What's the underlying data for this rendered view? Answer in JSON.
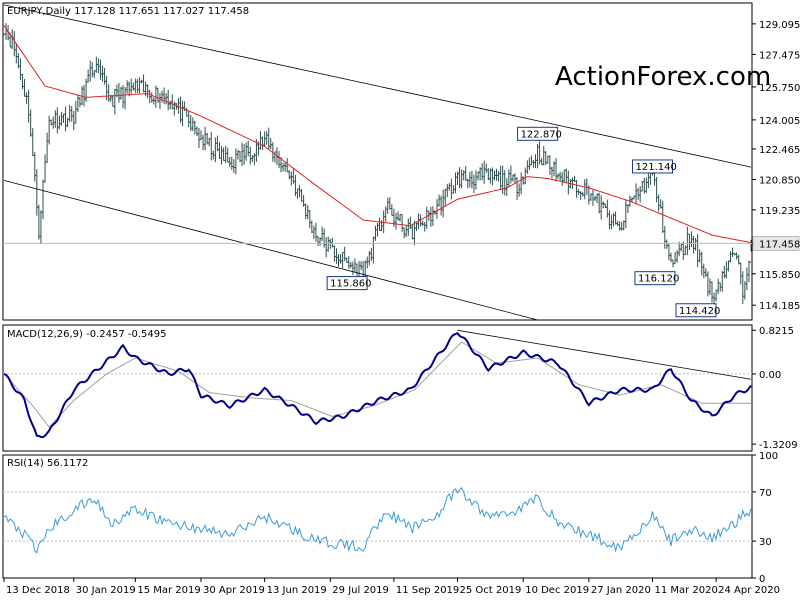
{
  "header": {
    "main": "EURJPY,Daily  117.128 117.651 117.027 117.458",
    "macd": "MACD(12,26,9) -0.2457 -0.5495",
    "rsi": "RSI(14) 56.1172"
  },
  "watermark": "ActionForex.com",
  "colors": {
    "price": "#2f4f4f",
    "ma": "#dd2222",
    "macd_line": "#00008b",
    "macd_signal": "#a0a0a0",
    "rsi_line": "#3a9bdc",
    "channel": "#000000",
    "grid": "#bbbbbb",
    "watermark": "#cfcfcf"
  },
  "chart_data": [
    {
      "type": "line",
      "title": "EURJPY,Daily",
      "ohlc_last": {
        "open": 117.128,
        "high": 117.651,
        "low": 117.027,
        "close": 117.458
      },
      "ylim": [
        113.4,
        130.2
      ],
      "y_ticks": [
        "129.095",
        "127.475",
        "125.750",
        "124.005",
        "122.465",
        "120.850",
        "119.235",
        "117.458",
        "115.850",
        "114.185"
      ],
      "y_tick_values": [
        129.095,
        127.475,
        125.75,
        124.005,
        122.465,
        120.85,
        119.235,
        117.458,
        115.85,
        114.185
      ],
      "current_price": 117.458,
      "x_ticks": [
        "13 Dec 2018",
        "30 Jan 2019",
        "15 Mar 2019",
        "30 Apr 2019",
        "13 Jun 2019",
        "29 Jul 2019",
        "11 Sep 2019",
        "25 Oct 2019",
        "10 Dec 2019",
        "27 Jan 2020",
        "11 Mar 2020",
        "24 Apr 2020"
      ],
      "x_tick_index": [
        0,
        34,
        64,
        96,
        127,
        159,
        190,
        221,
        253,
        285,
        316,
        347
      ],
      "num_bars": 365,
      "price_keypoints": [
        [
          0,
          129.0
        ],
        [
          5,
          127.8
        ],
        [
          12,
          124.6
        ],
        [
          17,
          118.2
        ],
        [
          22,
          124.0
        ],
        [
          34,
          124.2
        ],
        [
          44,
          126.9
        ],
        [
          52,
          125.1
        ],
        [
          64,
          125.7
        ],
        [
          80,
          125.2
        ],
        [
          96,
          123.0
        ],
        [
          110,
          121.7
        ],
        [
          127,
          122.9
        ],
        [
          140,
          121.0
        ],
        [
          152,
          117.9
        ],
        [
          167,
          116.4
        ],
        [
          175,
          115.9
        ],
        [
          186,
          119.3
        ],
        [
          198,
          118.0
        ],
        [
          210,
          119.2
        ],
        [
          221,
          120.9
        ],
        [
          236,
          121.0
        ],
        [
          250,
          120.6
        ],
        [
          260,
          122.3
        ],
        [
          270,
          121.1
        ],
        [
          285,
          120.2
        ],
        [
          300,
          118.1
        ],
        [
          305,
          119.7
        ],
        [
          316,
          121.1
        ],
        [
          325,
          116.3
        ],
        [
          335,
          117.9
        ],
        [
          345,
          114.7
        ],
        [
          356,
          117.0
        ],
        [
          360,
          115.0
        ],
        [
          364,
          117.46
        ]
      ],
      "ma_keypoints": [
        [
          0,
          129.0
        ],
        [
          20,
          125.8
        ],
        [
          40,
          125.2
        ],
        [
          70,
          125.4
        ],
        [
          96,
          124.2
        ],
        [
          127,
          122.6
        ],
        [
          150,
          120.7
        ],
        [
          175,
          118.7
        ],
        [
          198,
          118.4
        ],
        [
          221,
          119.8
        ],
        [
          245,
          120.4
        ],
        [
          255,
          121.0
        ],
        [
          265,
          120.9
        ],
        [
          285,
          120.4
        ],
        [
          305,
          119.7
        ],
        [
          325,
          118.8
        ],
        [
          345,
          117.9
        ],
        [
          364,
          117.5
        ]
      ],
      "annotations": [
        {
          "text": "122.870",
          "x": 260,
          "y": 122.87
        },
        {
          "text": "121.140",
          "x": 316,
          "y": 121.14
        },
        {
          "text": "115.860",
          "x": 175,
          "y": 115.86
        },
        {
          "text": "116.120",
          "x": 325,
          "y": 116.12
        },
        {
          "text": "114.420",
          "x": 345,
          "y": 114.42
        }
      ],
      "trend_lines": [
        {
          "from": [
            0,
            130.1
          ],
          "to": [
            364,
            121.5
          ]
        },
        {
          "from": [
            0,
            120.8
          ],
          "to": [
            260,
            113.4
          ]
        }
      ],
      "hline": 117.458
    },
    {
      "type": "line",
      "title": "MACD(12,26,9)",
      "ylim": [
        -1.45,
        0.92
      ],
      "y_ticks": [
        "0.8215",
        "0.00",
        "-1.3209"
      ],
      "y_tick_values": [
        0.8215,
        0.0,
        -1.3209
      ],
      "series": [
        {
          "name": "MACD",
          "values_last": -0.2457,
          "keypoints": [
            [
              0,
              0.0
            ],
            [
              10,
              -0.5
            ],
            [
              16,
              -1.2
            ],
            [
              22,
              -1.1
            ],
            [
              34,
              -0.3
            ],
            [
              46,
              0.1
            ],
            [
              58,
              0.5
            ],
            [
              64,
              0.3
            ],
            [
              80,
              0.0
            ],
            [
              90,
              0.1
            ],
            [
              96,
              -0.4
            ],
            [
              110,
              -0.6
            ],
            [
              127,
              -0.3
            ],
            [
              140,
              -0.6
            ],
            [
              152,
              -0.9
            ],
            [
              165,
              -0.8
            ],
            [
              182,
              -0.5
            ],
            [
              190,
              -0.4
            ],
            [
              198,
              -0.3
            ],
            [
              221,
              0.8
            ],
            [
              236,
              0.1
            ],
            [
              253,
              0.4
            ],
            [
              270,
              0.2
            ],
            [
              285,
              -0.55
            ],
            [
              300,
              -0.3
            ],
            [
              316,
              -0.3
            ],
            [
              325,
              0.1
            ],
            [
              335,
              -0.5
            ],
            [
              345,
              -0.8
            ],
            [
              356,
              -0.4
            ],
            [
              364,
              -0.25
            ]
          ]
        },
        {
          "name": "Signal",
          "values_last": -0.5495,
          "keypoints": [
            [
              0,
              0.0
            ],
            [
              14,
              -0.6
            ],
            [
              22,
              -1.0
            ],
            [
              34,
              -0.5
            ],
            [
              50,
              0.0
            ],
            [
              64,
              0.3
            ],
            [
              85,
              0.05
            ],
            [
              100,
              -0.35
            ],
            [
              120,
              -0.45
            ],
            [
              140,
              -0.5
            ],
            [
              160,
              -0.8
            ],
            [
              180,
              -0.6
            ],
            [
              200,
              -0.3
            ],
            [
              223,
              0.6
            ],
            [
              240,
              0.2
            ],
            [
              260,
              0.3
            ],
            [
              280,
              -0.2
            ],
            [
              300,
              -0.4
            ],
            [
              320,
              -0.2
            ],
            [
              340,
              -0.55
            ],
            [
              364,
              -0.55
            ]
          ]
        }
      ],
      "trend_line": {
        "from": [
          221,
          0.82
        ],
        "to": [
          364,
          -0.1
        ]
      }
    },
    {
      "type": "line",
      "title": "RSI(14)",
      "ylim": [
        0,
        100
      ],
      "y_ticks": [
        "100",
        "70",
        "30",
        "0"
      ],
      "y_tick_values": [
        100,
        70,
        30,
        0
      ],
      "levels": [
        70,
        30
      ],
      "series": [
        {
          "name": "RSI",
          "values_last": 56.1172,
          "keypoints": [
            [
              0,
              50
            ],
            [
              10,
              35
            ],
            [
              16,
              22
            ],
            [
              22,
              40
            ],
            [
              34,
              55
            ],
            [
              44,
              65
            ],
            [
              52,
              45
            ],
            [
              64,
              55
            ],
            [
              80,
              45
            ],
            [
              96,
              40
            ],
            [
              110,
              35
            ],
            [
              127,
              50
            ],
            [
              140,
              40
            ],
            [
              152,
              30
            ],
            [
              175,
              25
            ],
            [
              186,
              55
            ],
            [
              198,
              40
            ],
            [
              210,
              50
            ],
            [
              221,
              72
            ],
            [
              236,
              50
            ],
            [
              250,
              55
            ],
            [
              260,
              65
            ],
            [
              270,
              45
            ],
            [
              285,
              35
            ],
            [
              300,
              25
            ],
            [
              316,
              50
            ],
            [
              325,
              30
            ],
            [
              335,
              40
            ],
            [
              345,
              32
            ],
            [
              356,
              45
            ],
            [
              364,
              56.1
            ]
          ]
        }
      ]
    }
  ]
}
